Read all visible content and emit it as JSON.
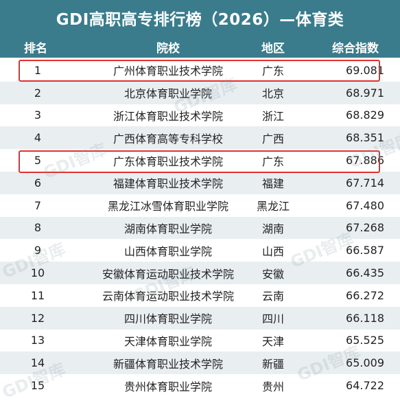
{
  "title": "GDI高职高专排行榜（2026）—体育类",
  "headers": {
    "rank": "排名",
    "school": "院校",
    "region": "地区",
    "score": "综合指数"
  },
  "rows": [
    {
      "rank": "1",
      "school": "广州体育职业技术学院",
      "region": "广东",
      "score": "69.081"
    },
    {
      "rank": "2",
      "school": "北京体育职业学院",
      "region": "北京",
      "score": "68.971"
    },
    {
      "rank": "3",
      "school": "浙江体育职业技术学院",
      "region": "浙江",
      "score": "68.829"
    },
    {
      "rank": "4",
      "school": "广西体育高等专科学校",
      "region": "广西",
      "score": "68.351"
    },
    {
      "rank": "5",
      "school": "广东体育职业技术学院",
      "region": "广东",
      "score": "67.886"
    },
    {
      "rank": "6",
      "school": "福建体育职业技术学院",
      "region": "福建",
      "score": "67.714"
    },
    {
      "rank": "7",
      "school": "黑龙江冰雪体育职业学院",
      "region": "黑龙江",
      "score": "67.480"
    },
    {
      "rank": "8",
      "school": "湖南体育职业学院",
      "region": "湖南",
      "score": "67.268"
    },
    {
      "rank": "9",
      "school": "山西体育职业学院",
      "region": "山西",
      "score": "66.587"
    },
    {
      "rank": "10",
      "school": "安徽体育运动职业技术学院",
      "region": "安徽",
      "score": "66.435"
    },
    {
      "rank": "11",
      "school": "云南体育运动职业技术学院",
      "region": "云南",
      "score": "66.272"
    },
    {
      "rank": "12",
      "school": "四川体育职业学院",
      "region": "四川",
      "score": "66.118"
    },
    {
      "rank": "13",
      "school": "天津体育职业学院",
      "region": "天津",
      "score": "65.525"
    },
    {
      "rank": "14",
      "school": "新疆体育职业技术学院",
      "region": "新疆",
      "score": "65.009"
    },
    {
      "rank": "15",
      "school": "贵州体育职业学院",
      "region": "贵州",
      "score": "64.722"
    }
  ],
  "watermark": "GDI智库",
  "colors": {
    "header_bg": "#3a7c8c",
    "highlight": "#e0312f",
    "stripe": "#e9eef1"
  }
}
